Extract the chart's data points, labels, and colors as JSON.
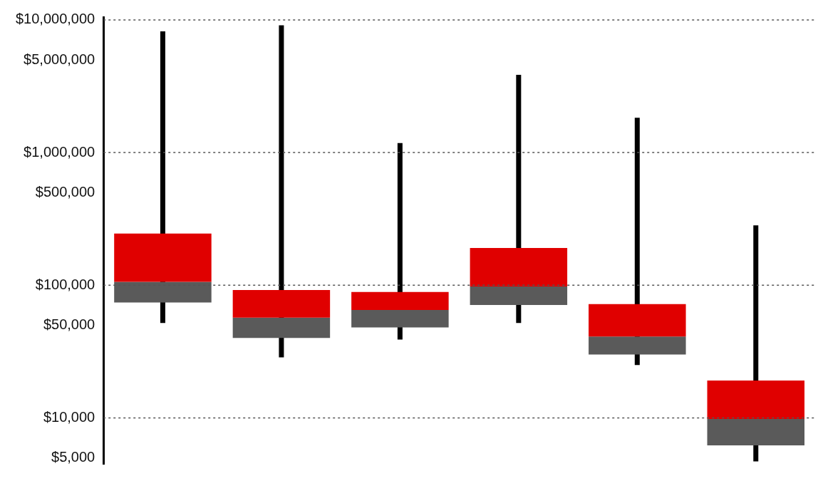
{
  "chart_data": {
    "type": "box",
    "categories": [
      null,
      null,
      null,
      null,
      null,
      null
    ],
    "series": [
      {
        "color": "#e00000",
        "colors": [
          "#5a5a5a",
          "#5a5a5a",
          "#5a5a5a",
          "#5a5a5a",
          "#5a5a5a",
          "#5a5a5a"
        ],
        "boxes": [
          {
            "low": 52000,
            "q1": 74000,
            "median": 106000,
            "q3": 245000,
            "high": 8200000
          },
          {
            "low": 28600,
            "q1": 40000,
            "median": 57000,
            "q3": 92000,
            "high": 9100000
          },
          {
            "low": 39000,
            "q1": 48000,
            "median": 65000,
            "q3": 89000,
            "high": 1180000
          },
          {
            "low": 52000,
            "q1": 71000,
            "median": 98000,
            "q3": 191000,
            "high": 3850000
          },
          {
            "low": 25000,
            "q1": 30000,
            "median": 41000,
            "q3": 72000,
            "high": 1830000
          },
          {
            "low": 4700,
            "q1": 6200,
            "median": 9800,
            "q3": 19100,
            "high": 283000
          }
        ]
      }
    ],
    "log": true,
    "ylim": [
      4500,
      10500000
    ],
    "yticks": [
      {
        "value": 5000,
        "label": "$5,000"
      },
      {
        "value": 10000,
        "label": "$10,000"
      },
      {
        "value": 50000,
        "label": "$50,000"
      },
      {
        "value": 100000,
        "label": "$100,000"
      },
      {
        "value": 500000,
        "label": "$500,000"
      },
      {
        "value": 1000000,
        "label": "$1,000,000"
      },
      {
        "value": 5000000,
        "label": "$5,000,000"
      },
      {
        "value": 10000000,
        "label": "$10,000,000"
      }
    ],
    "tick_labels": "y",
    "grid": false,
    "ref_lines": [
      {
        "axis": "y",
        "value": 10000,
        "line_style": "dotted",
        "color": "#555555"
      },
      {
        "axis": "y",
        "value": 100000,
        "line_style": "dotted",
        "color": "#555555"
      },
      {
        "axis": "y",
        "value": 1000000,
        "line_style": "dotted",
        "color": "#555555"
      },
      {
        "axis": "y",
        "value": 10000000,
        "line_style": "dotted",
        "color": "#555555"
      }
    ]
  }
}
